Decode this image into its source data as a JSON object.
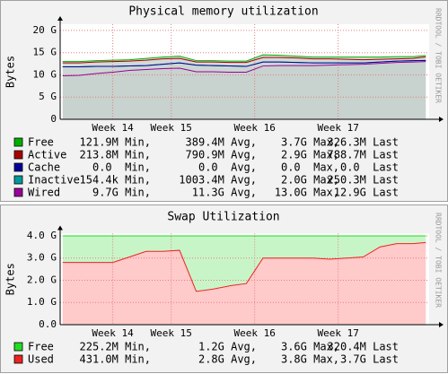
{
  "chart_data": [
    {
      "type": "area",
      "stacked": true,
      "title": "Physical memory utilization",
      "ylabel": "Bytes",
      "watermark": "RRDTOOL / TOBI OETIKER",
      "xlim": [
        13.67,
        18.09
      ],
      "xticks": [
        {
          "value": 14.3,
          "label": "Week 14"
        },
        {
          "value": 15,
          "label": "Week 15"
        },
        {
          "value": 16,
          "label": "Week 16"
        },
        {
          "value": 17,
          "label": "Week 17"
        }
      ],
      "ylim": [
        0,
        21.4
      ],
      "yticks": [
        0,
        {
          "value": 5,
          "label": "5 G"
        },
        {
          "value": 10,
          "label": "10 G"
        },
        {
          "value": 15,
          "label": "15 G"
        },
        {
          "value": 20,
          "label": "20 G"
        }
      ],
      "grid": true,
      "x": [
        13.7,
        13.9,
        14.1,
        14.3,
        14.5,
        14.7,
        14.9,
        15.1,
        15.3,
        15.5,
        15.7,
        15.9,
        16.1,
        16.3,
        16.5,
        16.7,
        16.9,
        17.1,
        17.3,
        17.5,
        17.7,
        17.9,
        18.05
      ],
      "series": [
        {
          "name": "Free",
          "color": "#00b000",
          "fill": "#d2dad6",
          "values": [
            0.3,
            0.3,
            0.3,
            0.3,
            0.3,
            0.4,
            0.4,
            0.5,
            0.3,
            0.3,
            0.3,
            0.3,
            0.6,
            0.5,
            0.4,
            0.4,
            0.4,
            0.5,
            0.6,
            0.5,
            0.5,
            0.4,
            0.3
          ],
          "legend_stats": [
            "121.9M Min,",
            "389.4M Avg,",
            "3.7G Max,",
            "326.3M Last"
          ]
        },
        {
          "name": "Active",
          "color": "#aa0000",
          "fill": "#d2dad6",
          "values": [
            0.9,
            0.9,
            1.0,
            1.1,
            1.1,
            1.2,
            1.2,
            1.0,
            0.7,
            0.8,
            0.8,
            0.9,
            1.0,
            1.0,
            1.0,
            0.9,
            0.9,
            0.8,
            0.7,
            0.6,
            0.5,
            0.5,
            0.8
          ],
          "legend_stats": [
            "213.8M Min,",
            "790.9M Avg,",
            "2.9G Max,",
            "788.7M Last"
          ]
        },
        {
          "name": "Cache",
          "color": "#000099",
          "fill": "#d2dad6",
          "values": [
            0,
            0,
            0,
            0,
            0,
            0,
            0,
            0,
            0,
            0,
            0,
            0,
            0,
            0,
            0,
            0,
            0,
            0,
            0,
            0,
            0,
            0,
            0
          ],
          "legend_stats": [
            "0.0  Min,",
            "0.0  Avg,",
            "0.0  Max,",
            "0.0  Last"
          ]
        },
        {
          "name": "Inactive",
          "color": "#009999",
          "fill": "#ccd6d2",
          "values": [
            2.0,
            1.9,
            1.6,
            1.3,
            1.0,
            0.9,
            1.0,
            1.2,
            1.5,
            1.4,
            1.4,
            1.3,
            0.9,
            0.8,
            0.7,
            0.6,
            0.5,
            0.4,
            0.3,
            0.3,
            0.3,
            0.3,
            0.25
          ],
          "legend_stats": [
            "154.4k Min,",
            "1003.4M Avg,",
            "2.0G Max,",
            "250.3M Last"
          ]
        },
        {
          "name": "Wired",
          "color": "#990099",
          "fill": "#c8d2ce",
          "values": [
            9.8,
            9.9,
            10.3,
            10.6,
            11.0,
            11.2,
            11.4,
            11.5,
            10.7,
            10.7,
            10.6,
            10.6,
            12.0,
            12.1,
            12.1,
            12.1,
            12.2,
            12.3,
            12.4,
            12.6,
            12.8,
            12.9,
            13.0
          ],
          "legend_stats": [
            "9.7G Min,",
            "11.3G Avg,",
            "13.0G Max,",
            "12.9G Last"
          ]
        }
      ]
    },
    {
      "type": "area",
      "stacked": true,
      "title": "Swap Utilization",
      "ylabel": "Bytes",
      "watermark": "RRDTOOL / TOBI OETIKER",
      "xlim": [
        13.67,
        18.09
      ],
      "xticks": [
        {
          "value": 14.3,
          "label": "Week 14"
        },
        {
          "value": 15,
          "label": "Week 15"
        },
        {
          "value": 16,
          "label": "Week 16"
        },
        {
          "value": 17,
          "label": "Week 17"
        }
      ],
      "ylim": [
        0,
        4.1
      ],
      "yticks": [
        {
          "value": 0,
          "label": "0.0"
        },
        {
          "value": 1,
          "label": "1.0 G"
        },
        {
          "value": 2,
          "label": "2.0 G"
        },
        {
          "value": 3,
          "label": "3.0 G"
        },
        {
          "value": 4,
          "label": "4.0 G"
        }
      ],
      "grid": true,
      "x": [
        13.7,
        13.9,
        14.1,
        14.3,
        14.5,
        14.7,
        14.9,
        15.1,
        15.3,
        15.5,
        15.7,
        15.9,
        16.1,
        16.3,
        16.5,
        16.7,
        16.9,
        17.1,
        17.3,
        17.5,
        17.7,
        17.9,
        18.05
      ],
      "series": [
        {
          "name": "Free",
          "color": "#22dd22",
          "fill": "#c8f5c8",
          "values": [
            1.2,
            1.2,
            1.2,
            1.2,
            0.95,
            0.7,
            0.7,
            0.65,
            2.5,
            2.4,
            2.25,
            2.15,
            1.0,
            1.0,
            1.0,
            1.0,
            1.05,
            1.0,
            0.95,
            0.5,
            0.35,
            0.35,
            0.3
          ],
          "legend_stats": [
            "225.2M Min,",
            "1.2G Avg,",
            "3.6G Max,",
            "320.4M Last"
          ]
        },
        {
          "name": "Used",
          "color": "#ee2222",
          "fill": "#ffcaca",
          "values": [
            2.8,
            2.8,
            2.8,
            2.8,
            3.05,
            3.3,
            3.3,
            3.35,
            1.5,
            1.6,
            1.75,
            1.85,
            3.0,
            3.0,
            3.0,
            3.0,
            2.95,
            3.0,
            3.05,
            3.5,
            3.65,
            3.65,
            3.7
          ],
          "legend_stats": [
            "431.0M Min,",
            "2.8G Avg,",
            "3.8G Max,",
            "3.7G Last"
          ]
        }
      ]
    }
  ]
}
